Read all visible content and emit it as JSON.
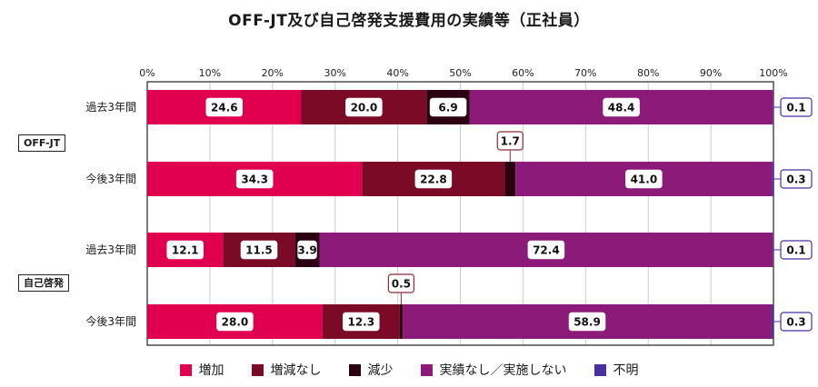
{
  "chart_data": {
    "type": "bar",
    "orientation": "horizontal",
    "stacked": true,
    "title": "OFF-JT及び自己啓発支援費用の実績等（正社員）",
    "xlim": [
      0,
      100
    ],
    "x_ticks": [
      "0%",
      "10%",
      "20%",
      "30%",
      "40%",
      "50%",
      "60%",
      "70%",
      "80%",
      "90%",
      "100%"
    ],
    "grid": true,
    "legend_position": "bottom",
    "groups": [
      {
        "label": "OFF-JT",
        "rows": [
          0,
          1
        ]
      },
      {
        "label": "自己啓発",
        "rows": [
          2,
          3
        ]
      }
    ],
    "categories": [
      "過去3年間",
      "今後3年間",
      "過去3年間",
      "今後3年間"
    ],
    "series": [
      {
        "name": "増加",
        "color": "#e0004d",
        "values": [
          24.6,
          34.3,
          12.1,
          28.0
        ]
      },
      {
        "name": "増減なし",
        "color": "#7a0a26",
        "values": [
          20.0,
          22.8,
          11.5,
          12.3
        ]
      },
      {
        "name": "減少",
        "color": "#2b0010",
        "values": [
          6.9,
          1.7,
          3.9,
          0.5
        ]
      },
      {
        "name": "実績なし／実施しない",
        "color": "#8c1a78",
        "values": [
          48.4,
          41.0,
          72.4,
          58.9
        ]
      },
      {
        "name": "不明",
        "color": "#4b2ea0",
        "values": [
          0.1,
          0.3,
          0.1,
          0.3
        ]
      }
    ],
    "data_labels": [
      [
        "24.6",
        "20.0",
        "6.9",
        "48.4",
        "0.1"
      ],
      [
        "34.3",
        "22.8",
        "1.7",
        "41.0",
        "0.3"
      ],
      [
        "12.1",
        "11.5",
        "3.9",
        "72.4",
        "0.1"
      ],
      [
        "28.0",
        "12.3",
        "0.5",
        "58.9",
        "0.3"
      ]
    ]
  }
}
